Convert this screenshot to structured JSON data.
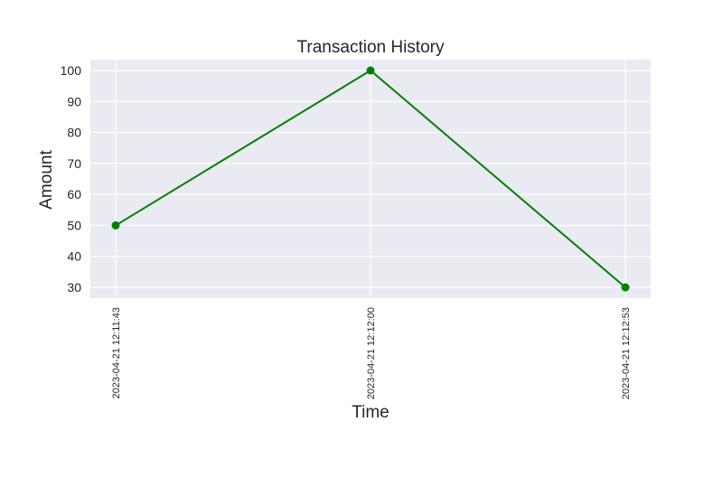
{
  "chart_data": {
    "type": "line",
    "title": "Transaction History",
    "xlabel": "Time",
    "ylabel": "Amount",
    "x": [
      "2023-04-21 12:11:43",
      "2023-04-21 12:12:00",
      "2023-04-21 12:12:53"
    ],
    "series": [
      {
        "values": [
          50,
          100,
          30
        ],
        "color": "#008000"
      }
    ],
    "yticks": [
      30,
      40,
      50,
      60,
      70,
      80,
      90,
      100
    ],
    "ylim": [
      26.5,
      103.5
    ],
    "grid": true,
    "background": "#eaeaf2",
    "xtick_rotation": "vertical"
  }
}
